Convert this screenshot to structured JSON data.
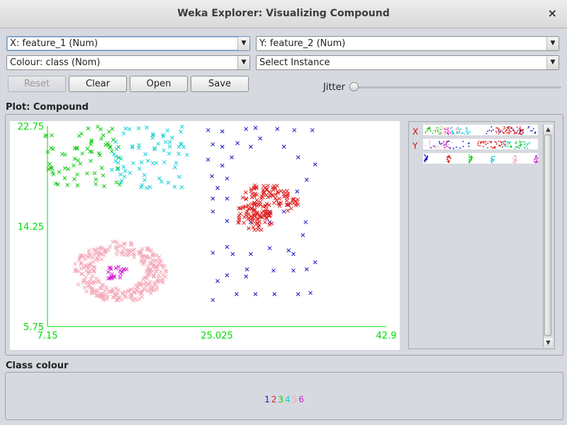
{
  "window": {
    "title": "Weka Explorer: Visualizing Compound",
    "close_glyph": "×"
  },
  "controls": {
    "x_axis": "X: feature_1 (Num)",
    "y_axis": "Y: feature_2 (Num)",
    "colour": "Colour: class (Nom)",
    "select_instance": "Select Instance",
    "reset": "Reset",
    "clear": "Clear",
    "open": "Open",
    "save": "Save",
    "jitter": "Jitter",
    "jitter_value": 0
  },
  "plot": {
    "title": "Plot: Compound",
    "axis_color": "#00dd00",
    "marker": "×"
  },
  "side_panel": {
    "x_label": "X",
    "y_label": "Y"
  },
  "class_colour": {
    "title": "Class colour",
    "classes": [
      {
        "label": "1",
        "color": "#1818c8"
      },
      {
        "label": "2",
        "color": "#e02020"
      },
      {
        "label": "3",
        "color": "#10c810"
      },
      {
        "label": "4",
        "color": "#18d0d8"
      },
      {
        "label": "5",
        "color": "#f4a8b8"
      },
      {
        "label": "6",
        "color": "#d020d0"
      }
    ]
  },
  "chart_data": {
    "type": "scatter",
    "title": "",
    "xlabel": "",
    "ylabel": "",
    "x_ticks": [
      "7.15",
      "25.025",
      "42.9"
    ],
    "y_ticks": [
      "22.75",
      "14.25",
      "5.75"
    ],
    "xlim": [
      7.15,
      42.9
    ],
    "ylim": [
      5.75,
      22.75
    ],
    "grid": false,
    "series": [
      {
        "name": "1",
        "color": "#1818c8",
        "points": [
          [
            24.1,
            22.4
          ],
          [
            25.6,
            22.3
          ],
          [
            28.1,
            22.5
          ],
          [
            29.1,
            22.6
          ],
          [
            31.4,
            22.5
          ],
          [
            33.2,
            22.4
          ],
          [
            35.1,
            22.4
          ],
          [
            24.6,
            21.2
          ],
          [
            25.6,
            21.0
          ],
          [
            27.2,
            21.3
          ],
          [
            28.6,
            21.0
          ],
          [
            29.6,
            21.7
          ],
          [
            32.1,
            21.0
          ],
          [
            24.1,
            19.9
          ],
          [
            25.6,
            19.4
          ],
          [
            26.6,
            20.1
          ],
          [
            33.6,
            20.1
          ],
          [
            35.4,
            19.5
          ],
          [
            26.1,
            18.3
          ],
          [
            24.5,
            18.5
          ],
          [
            34.5,
            18.2
          ],
          [
            25.1,
            17.5
          ],
          [
            33.5,
            17.2
          ],
          [
            24.6,
            16.6
          ],
          [
            26.1,
            16.6
          ],
          [
            32.6,
            16.1
          ],
          [
            24.6,
            15.5
          ],
          [
            30.6,
            15.4
          ],
          [
            32.1,
            15.5
          ],
          [
            26.1,
            14.7
          ],
          [
            28.6,
            14.6
          ],
          [
            30.6,
            14.6
          ],
          [
            34.4,
            14.6
          ],
          [
            34.1,
            13.5
          ],
          [
            26.1,
            12.5
          ],
          [
            30.6,
            12.4
          ],
          [
            32.6,
            12.2
          ],
          [
            24.6,
            12.0
          ],
          [
            26.7,
            11.9
          ],
          [
            28.6,
            11.9
          ],
          [
            33.1,
            11.9
          ],
          [
            35.4,
            11.2
          ],
          [
            28.2,
            10.6
          ],
          [
            31.0,
            10.5
          ],
          [
            33.1,
            10.5
          ],
          [
            34.5,
            10.6
          ],
          [
            26.1,
            10.1
          ],
          [
            28.1,
            10.0
          ],
          [
            25.1,
            9.6
          ],
          [
            27.1,
            8.5
          ],
          [
            29.1,
            8.5
          ],
          [
            31.1,
            8.5
          ],
          [
            33.6,
            8.5
          ],
          [
            34.9,
            8.6
          ],
          [
            24.6,
            8.0
          ]
        ]
      },
      {
        "name": "2",
        "color": "#e02020"
      },
      {
        "name": "3",
        "color": "#10c810"
      },
      {
        "name": "4",
        "color": "#18d0d8"
      },
      {
        "name": "5",
        "color": "#f4a8b8"
      },
      {
        "name": "6",
        "color": "#d020d0"
      }
    ],
    "clusters": [
      {
        "series": "2",
        "shape": "blob",
        "points_approx": [
          [
            28.5,
            16.5
          ],
          [
            29.5,
            17.3
          ],
          [
            30.5,
            17.0
          ],
          [
            31.8,
            16.6
          ],
          [
            33.0,
            16.2
          ],
          [
            28.0,
            15.2
          ],
          [
            29.0,
            14.6
          ],
          [
            30.0,
            14.8
          ],
          [
            29.8,
            15.8
          ]
        ]
      },
      {
        "series": "3",
        "shape": "cloud",
        "center": [
          10.8,
          20.2
        ],
        "spread": [
          4.0,
          2.6
        ]
      },
      {
        "series": "4",
        "shape": "cloud",
        "center": [
          17.9,
          20.1
        ],
        "spread": [
          4.0,
          2.6
        ]
      },
      {
        "series": "5",
        "shape": "ring",
        "center": [
          14.8,
          10.4
        ],
        "radius": [
          4.9,
          2.6
        ]
      },
      {
        "series": "6",
        "shape": "cloud",
        "center": [
          14.6,
          10.3
        ],
        "spread": [
          1.1,
          0.6
        ]
      }
    ]
  }
}
